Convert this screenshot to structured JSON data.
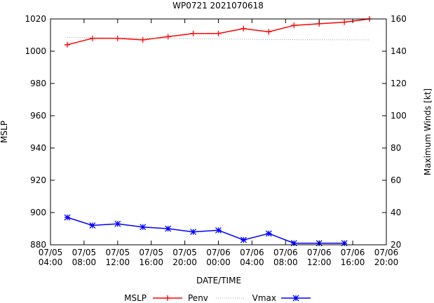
{
  "chart_data": {
    "type": "line",
    "title": "WP0721 2021070618",
    "xlabel": "DATE/TIME",
    "ylabel": "MSLP",
    "y2label": "Maximum Winds [kt]",
    "x_ticks": [
      [
        "07/05",
        "04:00"
      ],
      [
        "07/05",
        "08:00"
      ],
      [
        "07/05",
        "12:00"
      ],
      [
        "07/05",
        "16:00"
      ],
      [
        "07/05",
        "20:00"
      ],
      [
        "07/06",
        "00:00"
      ],
      [
        "07/06",
        "04:00"
      ],
      [
        "07/06",
        "08:00"
      ],
      [
        "07/06",
        "12:00"
      ],
      [
        "07/06",
        "16:00"
      ],
      [
        "07/06",
        "20:00"
      ]
    ],
    "xlim": [
      "2021-07-05 04:00",
      "2021-07-06 20:00"
    ],
    "ylim": [
      880,
      1020
    ],
    "yticks": [
      880,
      900,
      920,
      940,
      960,
      980,
      1000,
      1020
    ],
    "y2lim": [
      20,
      160
    ],
    "y2ticks": [
      20,
      40,
      60,
      80,
      100,
      120,
      140,
      160
    ],
    "grid": false,
    "legend": {
      "placement": "bottom",
      "heading": "MSLP",
      "entries": [
        "Penv",
        "Vmax"
      ]
    },
    "series": [
      {
        "name": "Penv",
        "axis": "left",
        "color": "#ff0000",
        "marker": "plus",
        "x": [
          "2021-07-05 06:00",
          "2021-07-05 09:00",
          "2021-07-05 12:00",
          "2021-07-05 15:00",
          "2021-07-05 18:00",
          "2021-07-05 21:00",
          "2021-07-06 00:00",
          "2021-07-06 03:00",
          "2021-07-06 06:00",
          "2021-07-06 09:00",
          "2021-07-06 12:00",
          "2021-07-06 15:00",
          "2021-07-06 18:00"
        ],
        "values": [
          1004,
          1008,
          1008,
          1007,
          1009,
          1011,
          1011,
          1014,
          1012,
          1016,
          1017,
          1018,
          1020
        ]
      },
      {
        "name": "",
        "axis": "left",
        "color": "#a0a0a0",
        "marker": "none",
        "style": "dotted",
        "x": [
          "2021-07-05 06:00",
          "2021-07-05 12:00",
          "2021-07-05 18:00",
          "2021-07-06 00:00",
          "2021-07-06 06:00",
          "2021-07-06 12:00",
          "2021-07-06 18:00"
        ],
        "values": [
          1008.5,
          1008.3,
          1007.8,
          1007.6,
          1007.2,
          1007.1,
          1007.0
        ]
      },
      {
        "name": "Vmax",
        "axis": "right",
        "color": "#0000ff",
        "marker": "star",
        "x": [
          "2021-07-05 06:00",
          "2021-07-05 09:00",
          "2021-07-05 12:00",
          "2021-07-05 15:00",
          "2021-07-05 18:00",
          "2021-07-05 21:00",
          "2021-07-06 00:00",
          "2021-07-06 03:00",
          "2021-07-06 06:00",
          "2021-07-06 09:00",
          "2021-07-06 12:00",
          "2021-07-06 15:00"
        ],
        "values": [
          37,
          32,
          33,
          31,
          30,
          28,
          29,
          23,
          27,
          21,
          21,
          21
        ]
      }
    ]
  }
}
